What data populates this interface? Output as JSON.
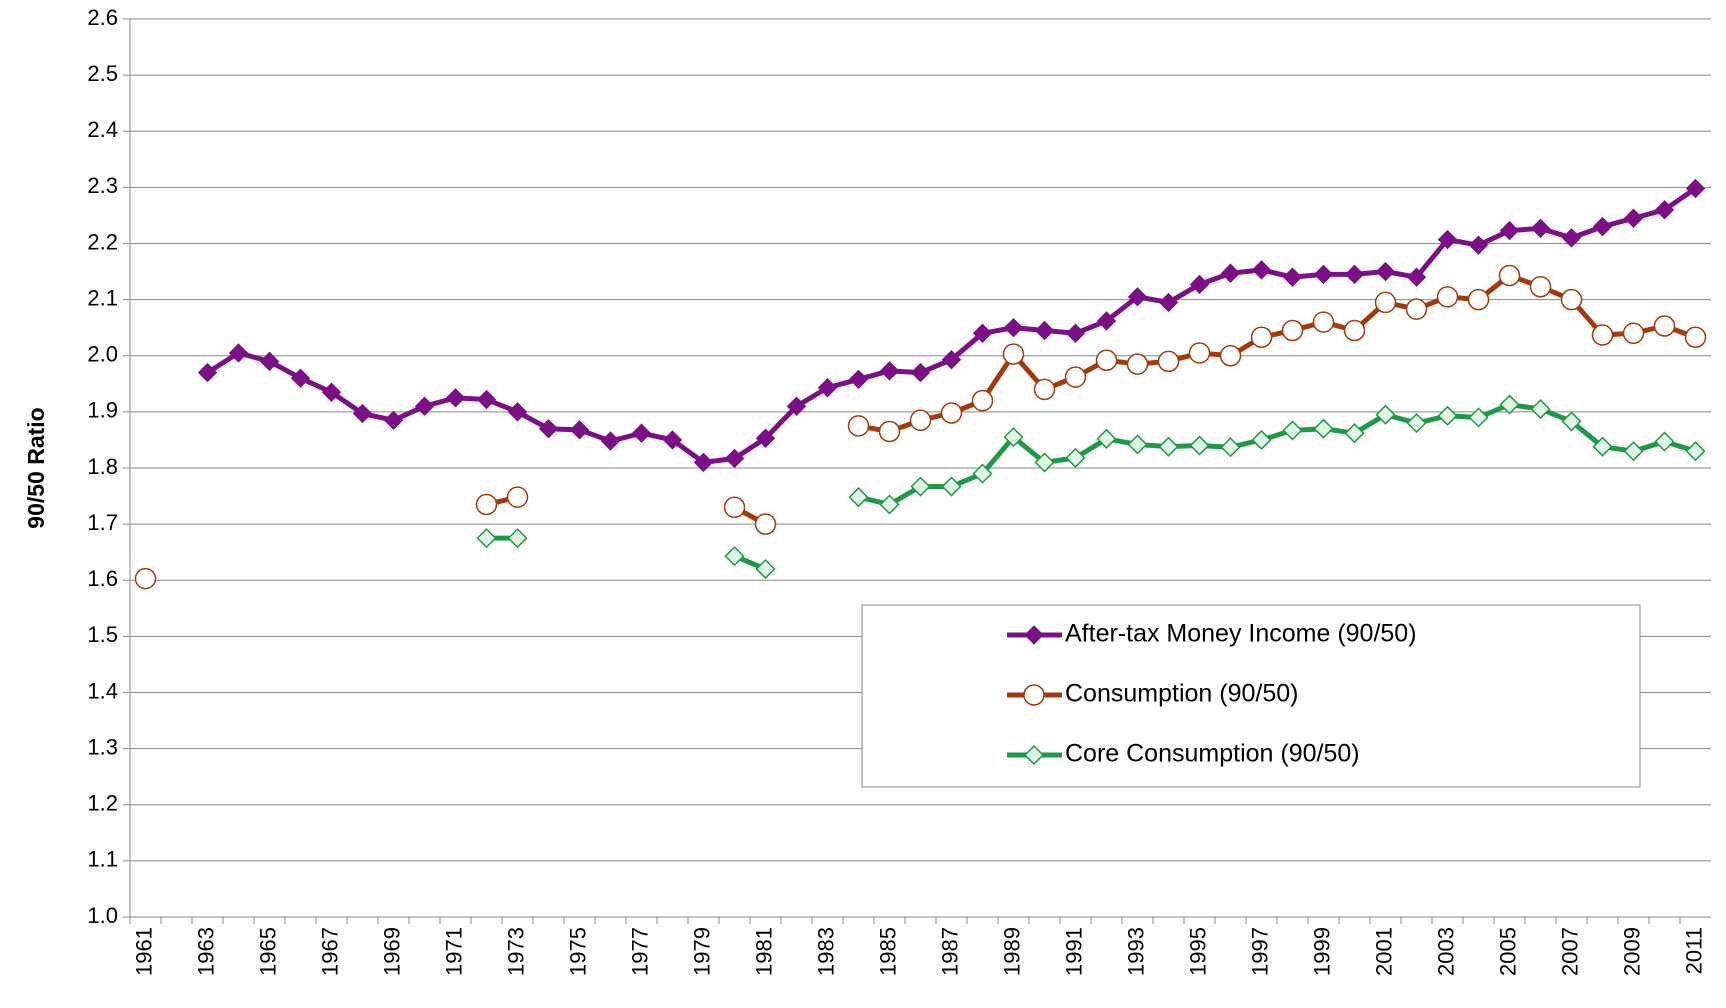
{
  "chart_data": {
    "type": "line",
    "y_label": "90/50 Ratio",
    "categories": [
      "1961",
      null,
      "1963",
      null,
      "1965",
      null,
      "1967",
      null,
      "1969",
      null,
      "1971",
      null,
      "1973",
      null,
      "1975",
      null,
      "1977",
      null,
      "1979",
      null,
      "1981",
      null,
      "1983",
      null,
      "1985",
      null,
      "1987",
      null,
      "1989",
      null,
      "1991",
      null,
      "1993",
      null,
      "1995",
      null,
      "1997",
      null,
      "1999",
      null,
      "2001",
      null,
      "2003",
      null,
      "2005",
      null,
      "2007",
      null,
      "2009",
      null,
      "2011"
    ],
    "series": [
      {
        "name": "After-tax Money Income (90/50)",
        "color": "#7b0f86",
        "marker": "diamond",
        "values": [
          null,
          null,
          1.97,
          2.005,
          1.99,
          1.96,
          1.935,
          1.897,
          1.885,
          1.91,
          1.925,
          1.922,
          1.9,
          1.87,
          1.868,
          1.848,
          1.862,
          1.85,
          1.81,
          1.817,
          1.853,
          1.91,
          1.943,
          1.958,
          1.973,
          1.97,
          1.993,
          2.04,
          2.05,
          2.045,
          2.04,
          2.062,
          2.105,
          2.095,
          2.127,
          2.147,
          2.153,
          2.14,
          2.145,
          2.145,
          2.15,
          2.14,
          2.207,
          2.197,
          2.223,
          2.227,
          2.21,
          2.23,
          2.245,
          2.26,
          2.298
        ]
      },
      {
        "name": "Consumption (90/50)",
        "color": "#a33a0b",
        "marker": "open-circle",
        "values": [
          1.603,
          null,
          null,
          null,
          null,
          null,
          null,
          null,
          null,
          null,
          null,
          1.735,
          1.748,
          null,
          null,
          null,
          null,
          null,
          null,
          1.73,
          1.7,
          null,
          null,
          1.875,
          1.865,
          1.885,
          1.898,
          1.92,
          2.003,
          1.94,
          1.962,
          1.992,
          1.985,
          1.99,
          2.005,
          2.0,
          2.033,
          2.045,
          2.06,
          2.045,
          2.095,
          2.083,
          2.105,
          2.1,
          2.143,
          2.123,
          2.1,
          2.037,
          2.04,
          2.053,
          2.033
        ]
      },
      {
        "name": "Core Consumption (90/50)",
        "color": "#1e9a44",
        "marker": "open-diamond",
        "values": [
          null,
          null,
          null,
          null,
          null,
          null,
          null,
          null,
          null,
          null,
          null,
          1.675,
          1.675,
          null,
          null,
          null,
          null,
          null,
          null,
          1.643,
          1.62,
          null,
          null,
          1.748,
          1.735,
          1.767,
          1.767,
          1.79,
          1.855,
          1.81,
          1.818,
          1.852,
          1.842,
          1.838,
          1.84,
          1.837,
          1.85,
          1.867,
          1.87,
          1.862,
          1.895,
          1.88,
          1.893,
          1.89,
          1.913,
          1.905,
          1.883,
          1.838,
          1.83,
          1.847,
          1.83
        ]
      }
    ],
    "ylim": [
      1.0,
      2.6
    ],
    "yticks": [
      {
        "value": 1.0,
        "label": "1.0"
      },
      1.1,
      1.2,
      1.3,
      1.4,
      1.5,
      1.6,
      1.7,
      1.8,
      1.9,
      {
        "value": 2.0,
        "label": "2.0"
      },
      2.1,
      2.2,
      2.3,
      2.4,
      2.5,
      2.6
    ],
    "grid": true,
    "legend": "lower right"
  }
}
